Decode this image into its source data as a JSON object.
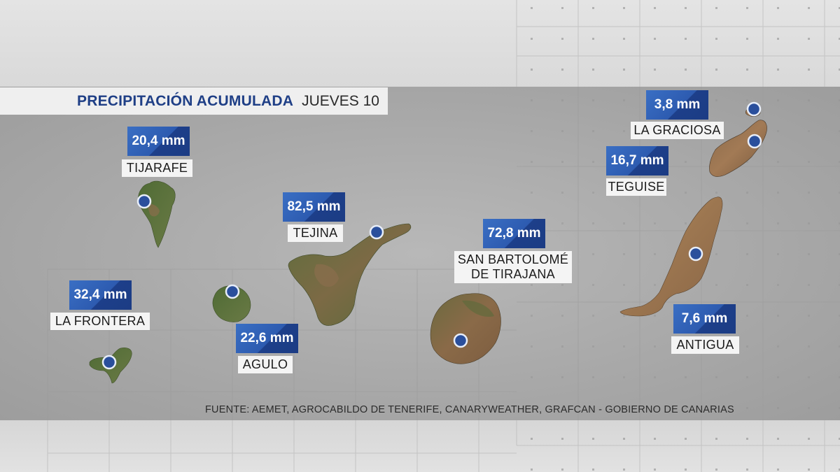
{
  "title": {
    "main": "PRECIPITACIÓN ACUMULADA",
    "date": "JUEVES 10"
  },
  "source": "FUENTE: AEMET, AGROCABILDO DE TENERIFE, CANARYWEATHER, GRAFCAN - GOBIERNO DE CANARIAS",
  "stations": [
    {
      "id": "tijarafe",
      "value": "20,4 mm",
      "name": "TIJARAFE"
    },
    {
      "id": "la-frontera",
      "value": "32,4 mm",
      "name": "LA FRONTERA"
    },
    {
      "id": "agulo",
      "value": "22,6 mm",
      "name": "AGULO"
    },
    {
      "id": "tejina",
      "value": "82,5 mm",
      "name": "TEJINA"
    },
    {
      "id": "san-bartolome",
      "value": "72,8 mm",
      "name_line1": "SAN BARTOLOMÉ",
      "name_line2": "DE TIRAJANA"
    },
    {
      "id": "la-graciosa",
      "value": "3,8 mm",
      "name": "LA GRACIOSA"
    },
    {
      "id": "teguise",
      "value": "16,7 mm",
      "name": "TEGUISE"
    },
    {
      "id": "antigua",
      "value": "7,6 mm",
      "name": "ANTIGUA"
    }
  ],
  "colors": {
    "title_blue": "#1f3f86",
    "value_box_blue": "#2d5bb0",
    "marker_blue": "#2a4f9c",
    "band_gray": "#a9a9a9"
  }
}
